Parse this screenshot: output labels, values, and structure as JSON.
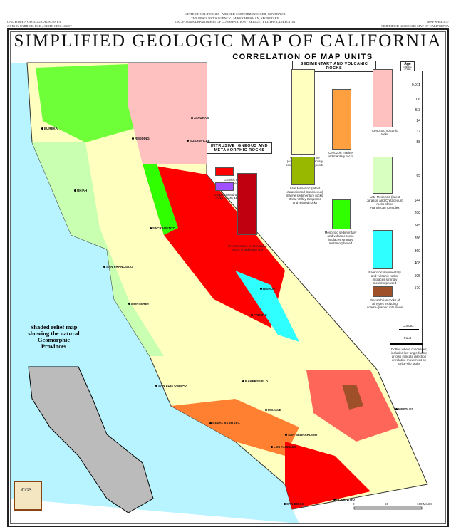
{
  "header": {
    "left": "CALIFORNIA GEOLOGICAL SURVEY\nJOHN G. PARRISH, Ph.D., STATE GEOLOGIST",
    "center": "STATE OF CALIFORNIA - ARNOLD SCHWARZENEGGER, GOVERNOR\nTHE RESOURCES AGENCY - MIKE CHRISMAN, SECRETARY\nCALIFORNIA DEPARTMENT OF CONSERVATION - BRIDGETT LUTHER, DIRECTOR",
    "right": "MAP SHEET 57\nSIMPLIFIED GEOLOGIC MAP OF CALIFORNIA"
  },
  "title": "SIMPLIFIED GEOLOGIC MAP OF CALIFORNIA",
  "subtitle": "CORRELATION OF MAP UNITS",
  "legend": {
    "sed_head": "SEDIMENTARY AND VOLCANIC ROCKS",
    "ign_head": "INTRUSIVE IGNEOUS AND\nMETAMORPHIC ROCKS",
    "units": [
      {
        "color": "#ff0000",
        "label": "Granitic rocks\nchiefly Mesozoic"
      },
      {
        "color": "#a050ff",
        "label": "Serpentinized ultramafic\nrocks chiefly Mesozoic"
      },
      {
        "color": "#c00010",
        "label": "Pre-Cenozoic metamorphic\nrocks of unknown age"
      },
      {
        "color": "#ffffc0",
        "label": "Cenozoic nonmarine\n(continental) sedimentary\nrocks and alluvial deposits"
      },
      {
        "color": "#ffa040",
        "label": "Cenozoic marine\nsedimentary rocks"
      },
      {
        "color": "#ffc0c0",
        "label": "Cenozoic volcanic\nrocks"
      },
      {
        "color": "#98b800",
        "label": "Late Mesozoic (latest\nJurassic and Cretaceous)\nmarine sedimentary rocks;\nGreat Valley Sequence\nand related rocks"
      },
      {
        "color": "#30ff00",
        "label": "Mesozoic sedimentary\nand volcanic rocks\nin places strongly\nmetamorphosed"
      },
      {
        "color": "#d8ffc0",
        "label": "Late Mesozoic (latest\nJurassic and Cretaceous)\nrocks of the\nFranciscan Complex"
      },
      {
        "color": "#30ffff",
        "label": "Paleozoic sedimentary\nand volcanic rocks,\nin places strongly\nmetamorphosed"
      },
      {
        "color": "#a05028",
        "label": "Precambrian rocks of\nall types including\ncoarse-grained intrusives"
      }
    ],
    "age_head": "Age",
    "age_sub": "in Millions\nof Years",
    "ages": [
      "0.011",
      "1.6",
      "5.3",
      "24",
      "37",
      "58",
      "65",
      "144",
      "208",
      "245",
      "286",
      "360",
      "408",
      "505",
      "570"
    ],
    "contact": "Contact",
    "fault": "Fault",
    "fault_note": "Dotted where concealed;\nincludes low-angle faults;\narrows indicate direction\nor relative movement on\nstrike-slip faults"
  },
  "inset": {
    "title": "Shaded relief map\nshowing the natural\nGeomorphic\nProvinces",
    "logo": "CGS"
  },
  "scale": {
    "ticks": [
      "0",
      "50",
      "100 MILES"
    ]
  },
  "cities": [
    "EUREKA",
    "REDDING",
    "ALTURAS",
    "SUSANVILLE",
    "UKIAH",
    "SACRAMENTO",
    "SAN FRANCISCO",
    "MONTEREY",
    "FRESNO",
    "BISHOP",
    "BAKERSFIELD",
    "SAN LUIS OBISPO",
    "MOJAVE",
    "SANTA BARBARA",
    "LOS ANGELES",
    "SAN BERNARDINO",
    "NEEDLES",
    "SAN DIEGO",
    "EL CENTRO"
  ]
}
